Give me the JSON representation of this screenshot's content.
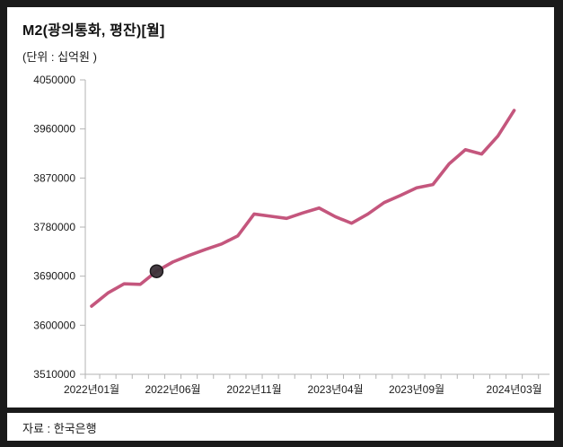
{
  "chart_data": {
    "type": "line",
    "title": "M2(광의통화, 평잔)[월]",
    "unit_label": "(단위 : 십억원 )",
    "source": "자료 : 한국은행",
    "xlabel": "",
    "ylabel": "십억원",
    "ylim": [
      3510000,
      4050000
    ],
    "ytick_step": 90000,
    "grid": false,
    "legend": "none",
    "categories": [
      "2022년01월",
      "2022년02월",
      "2022년03월",
      "2022년04월",
      "2022년05월",
      "2022년06월",
      "2022년07월",
      "2022년08월",
      "2022년09월",
      "2022년10월",
      "2022년11월",
      "2022년12월",
      "2023년01월",
      "2023년02월",
      "2023년03월",
      "2023년04월",
      "2023년05월",
      "2023년06월",
      "2023년07월",
      "2023년08월",
      "2023년09월",
      "2023년10월",
      "2023년11월",
      "2023년12월",
      "2024년01월",
      "2024년02월",
      "2024년03월"
    ],
    "series": [
      {
        "name": "M2(광의통화, 평잔)",
        "values": [
          3635000,
          3659000,
          3676000,
          3675000,
          3699000,
          3716000,
          3728000,
          3739000,
          3749000,
          3764000,
          3804000,
          3800000,
          3796000,
          3806000,
          3815000,
          3799000,
          3787000,
          3804000,
          3825000,
          3838000,
          3852000,
          3858000,
          3896000,
          3922000,
          3914000,
          3947000,
          3994000
        ]
      }
    ],
    "x_tick_labels": [
      {
        "index": 0,
        "label": "2022년01월"
      },
      {
        "index": 5,
        "label": "2022년06월"
      },
      {
        "index": 10,
        "label": "2022년11월"
      },
      {
        "index": 15,
        "label": "2023년04월"
      },
      {
        "index": 20,
        "label": "2023년09월"
      },
      {
        "index": 26,
        "label": "2024년03월"
      }
    ],
    "highlight_index": 4,
    "highlight_value": 3699000,
    "colors": {
      "line": "#c4567d",
      "marker": "#3b3238",
      "marker_stroke": "#1c181b",
      "axis": "#b3b3b3",
      "text": "#1a1a1a",
      "frame": "#1a1a1a",
      "background": "#ffffff"
    }
  }
}
